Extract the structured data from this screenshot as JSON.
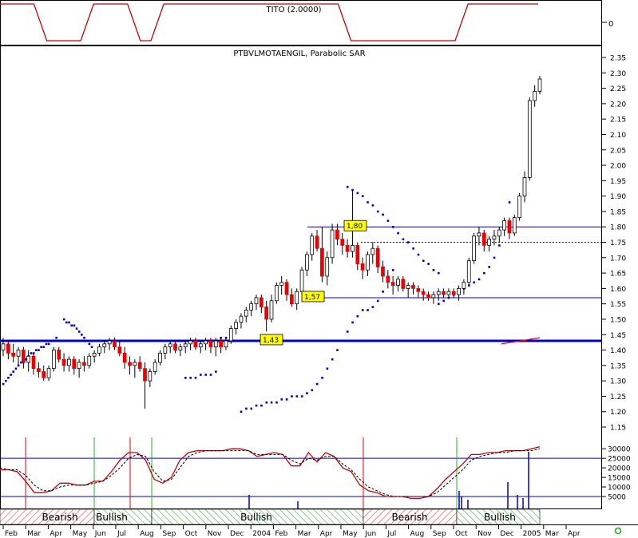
{
  "chart_data": [
    {
      "panel": "indicator",
      "type": "line",
      "title": "TITO (2.0000)",
      "y_tick_labels": [
        "0"
      ],
      "color": "#cc0000",
      "x": [
        "2003-02",
        "2003-03",
        "2003-04",
        "2003-05",
        "2003-06",
        "2003-07",
        "2003-08",
        "2003-09",
        "2003-10",
        "2003-11",
        "2003-12",
        "2004-01",
        "2004-02",
        "2004-03",
        "2004-04",
        "2004-05",
        "2004-06",
        "2004-07",
        "2004-08",
        "2004-09",
        "2004-10",
        "2004-11",
        "2004-12",
        "2005-01"
      ],
      "values": [
        1,
        1,
        0,
        0,
        1,
        1,
        0,
        1,
        1,
        1,
        1,
        1,
        1,
        1,
        1,
        0,
        0,
        0,
        0,
        0,
        1,
        1,
        1,
        1
      ]
    },
    {
      "panel": "price",
      "type": "candlestick",
      "title": "PTBVLMOTAENGIL, Parabolic SAR",
      "ylim": [
        1.15,
        2.35
      ],
      "y_ticks": [
        1.15,
        1.2,
        1.25,
        1.3,
        1.35,
        1.4,
        1.45,
        1.5,
        1.55,
        1.6,
        1.65,
        1.7,
        1.75,
        1.8,
        1.85,
        1.9,
        1.95,
        2.0,
        2.05,
        2.1,
        2.15,
        2.2,
        2.25,
        2.3,
        2.35
      ],
      "x_tick_labels": [
        "Feb",
        "Mar",
        "Apr",
        "May",
        "Jun",
        "Jul",
        "Aug",
        "Sep",
        "Oct",
        "Nov",
        "Dec",
        "2004",
        "Feb",
        "Mar",
        "Apr",
        "May",
        "Jun",
        "Jul",
        "Aug",
        "Sep",
        "Oct",
        "Nov",
        "Dec",
        "2005",
        "Mar",
        "Apr"
      ],
      "up_color": "#ffffff",
      "down_color": "#ee0000",
      "sar_color": "#0000cc",
      "support_line": {
        "value": 1.43,
        "color": "#0000cc"
      },
      "resistance_lines": [
        1.8,
        1.75,
        1.57
      ],
      "annotations": [
        {
          "text": "1,80",
          "value": 1.8
        },
        {
          "text": "1,57",
          "value": 1.57
        },
        {
          "text": "1,43",
          "value": 1.43
        }
      ],
      "weeks": [
        [
          1.4,
          1.44,
          1.38,
          1.42
        ],
        [
          1.42,
          1.43,
          1.37,
          1.39
        ],
        [
          1.39,
          1.42,
          1.36,
          1.38
        ],
        [
          1.38,
          1.41,
          1.35,
          1.4
        ],
        [
          1.4,
          1.41,
          1.34,
          1.36
        ],
        [
          1.36,
          1.4,
          1.33,
          1.38
        ],
        [
          1.38,
          1.39,
          1.32,
          1.34
        ],
        [
          1.34,
          1.36,
          1.31,
          1.33
        ],
        [
          1.33,
          1.35,
          1.3,
          1.31
        ],
        [
          1.31,
          1.35,
          1.3,
          1.34
        ],
        [
          1.34,
          1.41,
          1.33,
          1.4
        ],
        [
          1.4,
          1.41,
          1.36,
          1.37
        ],
        [
          1.37,
          1.39,
          1.33,
          1.35
        ],
        [
          1.35,
          1.38,
          1.33,
          1.37
        ],
        [
          1.37,
          1.38,
          1.32,
          1.34
        ],
        [
          1.34,
          1.37,
          1.31,
          1.36
        ],
        [
          1.36,
          1.38,
          1.33,
          1.35
        ],
        [
          1.35,
          1.39,
          1.34,
          1.38
        ],
        [
          1.38,
          1.4,
          1.36,
          1.39
        ],
        [
          1.39,
          1.42,
          1.38,
          1.41
        ],
        [
          1.41,
          1.43,
          1.39,
          1.42
        ],
        [
          1.42,
          1.44,
          1.4,
          1.43
        ],
        [
          1.43,
          1.44,
          1.4,
          1.41
        ],
        [
          1.41,
          1.43,
          1.38,
          1.39
        ],
        [
          1.39,
          1.41,
          1.34,
          1.36
        ],
        [
          1.36,
          1.38,
          1.32,
          1.35
        ],
        [
          1.35,
          1.37,
          1.31,
          1.36
        ],
        [
          1.36,
          1.38,
          1.33,
          1.34
        ],
        [
          1.34,
          1.36,
          1.21,
          1.3
        ],
        [
          1.3,
          1.34,
          1.28,
          1.33
        ],
        [
          1.33,
          1.37,
          1.32,
          1.36
        ],
        [
          1.36,
          1.4,
          1.35,
          1.39
        ],
        [
          1.39,
          1.42,
          1.37,
          1.41
        ],
        [
          1.41,
          1.43,
          1.39,
          1.42
        ],
        [
          1.42,
          1.43,
          1.39,
          1.4
        ],
        [
          1.4,
          1.42,
          1.38,
          1.41
        ],
        [
          1.41,
          1.43,
          1.39,
          1.42
        ],
        [
          1.42,
          1.44,
          1.4,
          1.43
        ],
        [
          1.43,
          1.44,
          1.4,
          1.41
        ],
        [
          1.41,
          1.43,
          1.39,
          1.42
        ],
        [
          1.42,
          1.44,
          1.4,
          1.43
        ],
        [
          1.43,
          1.44,
          1.39,
          1.41
        ],
        [
          1.41,
          1.44,
          1.38,
          1.43
        ],
        [
          1.43,
          1.44,
          1.39,
          1.41
        ],
        [
          1.41,
          1.44,
          1.4,
          1.43
        ],
        [
          1.43,
          1.48,
          1.42,
          1.47
        ],
        [
          1.47,
          1.5,
          1.45,
          1.49
        ],
        [
          1.49,
          1.52,
          1.47,
          1.51
        ],
        [
          1.51,
          1.54,
          1.49,
          1.53
        ],
        [
          1.53,
          1.56,
          1.51,
          1.55
        ],
        [
          1.55,
          1.58,
          1.53,
          1.57
        ],
        [
          1.57,
          1.58,
          1.52,
          1.54
        ],
        [
          1.54,
          1.56,
          1.46,
          1.5
        ],
        [
          1.5,
          1.58,
          1.49,
          1.56
        ],
        [
          1.56,
          1.62,
          1.55,
          1.61
        ],
        [
          1.61,
          1.64,
          1.58,
          1.62
        ],
        [
          1.62,
          1.63,
          1.56,
          1.58
        ],
        [
          1.58,
          1.6,
          1.54,
          1.55
        ],
        [
          1.55,
          1.6,
          1.53,
          1.59
        ],
        [
          1.59,
          1.67,
          1.58,
          1.66
        ],
        [
          1.66,
          1.72,
          1.64,
          1.71
        ],
        [
          1.71,
          1.78,
          1.69,
          1.77
        ],
        [
          1.77,
          1.79,
          1.72,
          1.73
        ],
        [
          1.73,
          1.8,
          1.62,
          1.64
        ],
        [
          1.64,
          1.72,
          1.61,
          1.7
        ],
        [
          1.7,
          1.81,
          1.68,
          1.79
        ],
        [
          1.79,
          1.81,
          1.74,
          1.76
        ],
        [
          1.76,
          1.78,
          1.71,
          1.74
        ],
        [
          1.74,
          1.76,
          1.7,
          1.72
        ],
        [
          1.72,
          1.92,
          1.7,
          1.74
        ],
        [
          1.74,
          1.75,
          1.66,
          1.68
        ],
        [
          1.68,
          1.7,
          1.63,
          1.66
        ],
        [
          1.66,
          1.72,
          1.64,
          1.71
        ],
        [
          1.71,
          1.75,
          1.68,
          1.73
        ],
        [
          1.73,
          1.74,
          1.65,
          1.67
        ],
        [
          1.67,
          1.69,
          1.62,
          1.64
        ],
        [
          1.64,
          1.66,
          1.6,
          1.62
        ],
        [
          1.62,
          1.64,
          1.58,
          1.61
        ],
        [
          1.61,
          1.64,
          1.59,
          1.63
        ],
        [
          1.63,
          1.64,
          1.59,
          1.6
        ],
        [
          1.6,
          1.62,
          1.57,
          1.61
        ],
        [
          1.61,
          1.62,
          1.58,
          1.6
        ],
        [
          1.6,
          1.61,
          1.57,
          1.59
        ],
        [
          1.59,
          1.6,
          1.56,
          1.58
        ],
        [
          1.58,
          1.59,
          1.56,
          1.57
        ],
        [
          1.57,
          1.59,
          1.55,
          1.58
        ],
        [
          1.58,
          1.6,
          1.56,
          1.59
        ],
        [
          1.59,
          1.6,
          1.57,
          1.58
        ],
        [
          1.58,
          1.6,
          1.57,
          1.59
        ],
        [
          1.59,
          1.6,
          1.57,
          1.58
        ],
        [
          1.58,
          1.61,
          1.56,
          1.6
        ],
        [
          1.6,
          1.63,
          1.58,
          1.62
        ],
        [
          1.62,
          1.7,
          1.61,
          1.69
        ],
        [
          1.69,
          1.78,
          1.68,
          1.77
        ],
        [
          1.77,
          1.8,
          1.74,
          1.78
        ],
        [
          1.78,
          1.79,
          1.72,
          1.74
        ],
        [
          1.74,
          1.77,
          1.72,
          1.76
        ],
        [
          1.76,
          1.79,
          1.74,
          1.77
        ],
        [
          1.77,
          1.8,
          1.75,
          1.79
        ],
        [
          1.79,
          1.83,
          1.77,
          1.82
        ],
        [
          1.82,
          1.83,
          1.76,
          1.78
        ],
        [
          1.78,
          1.84,
          1.77,
          1.83
        ],
        [
          1.83,
          1.91,
          1.82,
          1.9
        ],
        [
          1.9,
          1.98,
          1.88,
          1.96
        ],
        [
          1.96,
          2.22,
          1.95,
          2.21
        ],
        [
          2.21,
          2.26,
          2.19,
          2.24
        ],
        [
          2.24,
          2.29,
          2.23,
          2.28
        ]
      ],
      "sar_segments": [
        [
          1.29,
          1.3,
          1.31,
          1.32,
          1.33,
          1.34,
          1.35,
          1.36,
          1.36,
          1.37,
          1.38,
          1.39,
          1.39,
          1.4,
          1.4,
          1.41,
          1.41,
          1.42,
          1.42,
          1.43,
          1.43,
          1.44
        ],
        [
          1.5,
          1.49,
          1.49,
          1.48,
          1.48,
          1.47,
          1.46,
          1.45,
          1.44,
          1.43,
          1.42,
          1.41
        ],
        [
          1.31,
          1.31,
          1.31,
          1.32,
          1.32,
          1.32,
          1.33
        ],
        [
          1.44,
          1.44,
          1.43
        ],
        [
          1.2,
          1.21,
          1.21,
          1.22,
          1.22,
          1.23,
          1.23,
          1.23,
          1.24,
          1.24,
          1.25,
          1.25,
          1.25,
          1.26,
          1.27,
          1.29,
          1.31,
          1.34,
          1.37,
          1.4,
          1.43,
          1.46,
          1.49,
          1.51,
          1.53,
          1.53,
          1.54,
          1.56,
          1.59,
          1.63,
          1.66
        ],
        [
          1.93,
          1.92,
          1.91,
          1.9,
          1.88,
          1.87,
          1.85,
          1.84,
          1.82,
          1.8,
          1.78,
          1.76,
          1.75,
          1.73,
          1.71,
          1.69,
          1.68,
          1.66,
          1.65
        ],
        [
          1.55,
          1.56,
          1.57,
          1.58,
          1.59,
          1.6,
          1.61,
          1.62,
          1.63,
          1.65,
          1.67,
          1.7,
          1.74,
          1.81,
          1.88
        ]
      ]
    },
    {
      "panel": "volume",
      "type": "line",
      "y_ticks": [
        5000,
        10000,
        15000,
        20000,
        25000,
        30000
      ],
      "y_tick_labels": [
        "5000",
        "10000",
        "15000",
        "20000",
        "25000",
        "30000"
      ],
      "ylim": [
        0,
        33000
      ],
      "threshold_lines": [
        25000,
        5000
      ],
      "series": [
        {
          "color": "#cc0000",
          "style": "solid",
          "values": [
            19000,
            19000,
            18000,
            13000,
            7000,
            7000,
            8000,
            12000,
            12000,
            11000,
            11000,
            13000,
            13000,
            18000,
            24000,
            28000,
            28000,
            24000,
            14000,
            12000,
            15000,
            24000,
            28000,
            29000,
            29000,
            29000,
            29000,
            30000,
            30000,
            29000,
            26000,
            27000,
            28000,
            27000,
            21000,
            21000,
            28000,
            23000,
            28000,
            26000,
            20000,
            18000,
            11000,
            8000,
            7000,
            5000,
            5000,
            5000,
            4000,
            4000,
            5000,
            9000,
            14000,
            18000,
            22000,
            27000,
            27000,
            28000,
            28000,
            29000,
            29000,
            29000,
            30000,
            31000
          ]
        },
        {
          "color": "#000000",
          "style": "dashed",
          "values": [
            20000,
            19000,
            19000,
            16000,
            11000,
            8000,
            8000,
            10000,
            11000,
            11000,
            11000,
            12000,
            13000,
            16000,
            20000,
            25000,
            27000,
            26000,
            18000,
            13000,
            14000,
            20000,
            26000,
            28000,
            29000,
            29000,
            29000,
            29000,
            29000,
            29000,
            27000,
            27000,
            27000,
            27000,
            24000,
            22000,
            25000,
            24000,
            26000,
            26000,
            22000,
            19000,
            14000,
            10000,
            8000,
            6000,
            5000,
            5000,
            5000,
            5000,
            5000,
            7000,
            11000,
            15000,
            19000,
            24000,
            26000,
            27000,
            28000,
            28000,
            29000,
            29000,
            29000,
            30000
          ]
        }
      ],
      "trend_bands": [
        {
          "label": "Bearish",
          "kind": "bear"
        },
        {
          "label": "Bullish",
          "kind": "bull"
        },
        {
          "label": "Bullish",
          "kind": "bull"
        },
        {
          "label": "Bearish",
          "kind": "bear"
        },
        {
          "label": "Bullish",
          "kind": "bull"
        }
      ]
    }
  ]
}
